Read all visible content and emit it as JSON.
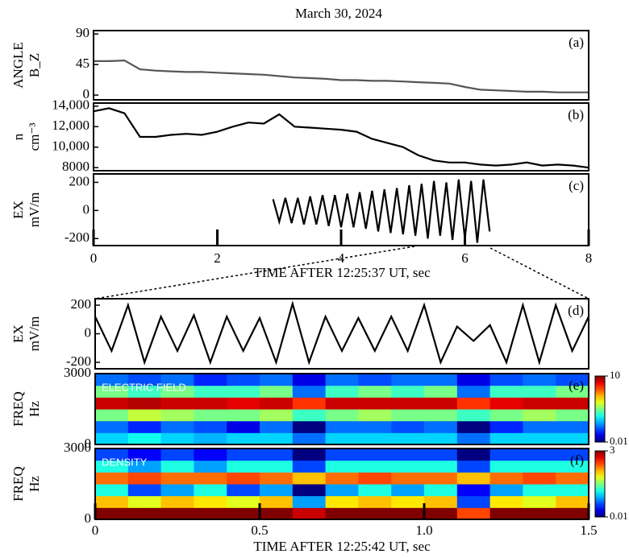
{
  "title": "March 30, 2024",
  "chart_data": [
    {
      "type": "line",
      "label": "(a)",
      "ylabel": [
        "ANGLE",
        "B_Z"
      ],
      "color": "#555555",
      "x": [
        0,
        0.25,
        0.5,
        0.75,
        1,
        1.25,
        1.5,
        1.75,
        2,
        2.25,
        2.5,
        2.75,
        3,
        3.25,
        3.5,
        3.75,
        4,
        4.25,
        4.5,
        4.75,
        5,
        5.25,
        5.5,
        5.75,
        6,
        6.25,
        6.5,
        6.75,
        7,
        7.25,
        7.5,
        7.75,
        8
      ],
      "values": [
        50,
        50,
        51,
        38,
        36,
        35,
        34,
        34,
        33,
        32,
        31,
        30,
        28,
        26,
        25,
        24,
        22,
        22,
        21,
        21,
        20,
        19,
        18,
        17,
        12,
        8,
        7,
        6,
        5,
        5,
        4,
        4,
        4
      ],
      "xlim": [
        0,
        8
      ],
      "ylim": [
        -7,
        95
      ],
      "yticks": [
        0,
        45,
        90
      ]
    },
    {
      "type": "line",
      "label": "(b)",
      "ylabel": [
        "n",
        "cm⁻³"
      ],
      "color": "#000000",
      "x": [
        0,
        0.25,
        0.5,
        0.75,
        1,
        1.25,
        1.5,
        1.75,
        2,
        2.25,
        2.5,
        2.75,
        3,
        3.25,
        3.5,
        3.75,
        4,
        4.25,
        4.5,
        4.75,
        5,
        5.25,
        5.5,
        5.75,
        6,
        6.25,
        6.5,
        6.75,
        7,
        7.25,
        7.5,
        7.75,
        8
      ],
      "values": [
        13500,
        13800,
        13300,
        11000,
        11000,
        11200,
        11300,
        11200,
        11500,
        12000,
        12400,
        12300,
        13200,
        12000,
        11900,
        11800,
        11700,
        11500,
        10800,
        10400,
        10000,
        9200,
        8700,
        8500,
        8500,
        8300,
        8200,
        8300,
        8500,
        8200,
        8300,
        8200,
        8000
      ],
      "xlim": [
        0,
        8
      ],
      "ylim": [
        7700,
        14300
      ],
      "yticks": [
        8000,
        {
          "value": 10000,
          "label": "10,000"
        },
        {
          "value": 12000,
          "label": "12,000"
        },
        {
          "value": 14000,
          "label": "14,000"
        }
      ]
    },
    {
      "type": "line",
      "label": "(c)",
      "ylabel": [
        "EX",
        "mV/m"
      ],
      "color": "#000000",
      "x": [
        2.9,
        3.0,
        3.1,
        3.2,
        3.3,
        3.4,
        3.5,
        3.6,
        3.7,
        3.8,
        3.9,
        4.0,
        4.1,
        4.2,
        4.3,
        4.4,
        4.5,
        4.6,
        4.7,
        4.8,
        4.9,
        5.0,
        5.1,
        5.2,
        5.3,
        5.4,
        5.5,
        5.6,
        5.7,
        5.8,
        5.9,
        6.0,
        6.1,
        6.2,
        6.3,
        6.4
      ],
      "values": [
        80,
        -80,
        90,
        -90,
        90,
        -100,
        100,
        -100,
        110,
        -110,
        110,
        -120,
        120,
        -120,
        130,
        -130,
        140,
        -150,
        150,
        -160,
        160,
        -170,
        180,
        -180,
        190,
        -200,
        210,
        -180,
        200,
        -210,
        220,
        -200,
        210,
        -230,
        220,
        -150
      ],
      "xlim": [
        0,
        8
      ],
      "ylim": [
        -250,
        260
      ],
      "yticks": [
        -200,
        0,
        200
      ],
      "xticks": [
        0,
        2,
        4,
        6,
        8
      ],
      "xlabel": "TIME AFTER 12:25:37 UT, sec"
    },
    {
      "type": "line",
      "label": "(d)",
      "ylabel": [
        "EX",
        "mV/m"
      ],
      "color": "#000000",
      "x": [
        0,
        0.05,
        0.1,
        0.15,
        0.2,
        0.25,
        0.3,
        0.35,
        0.4,
        0.45,
        0.5,
        0.55,
        0.6,
        0.65,
        0.7,
        0.75,
        0.8,
        0.85,
        0.9,
        0.95,
        1.0,
        1.05,
        1.1,
        1.15,
        1.2,
        1.25,
        1.3,
        1.35,
        1.4,
        1.45,
        1.5
      ],
      "values": [
        120,
        -120,
        200,
        -200,
        120,
        -120,
        130,
        -200,
        120,
        -120,
        110,
        -200,
        210,
        -200,
        120,
        -120,
        110,
        -120,
        120,
        -120,
        200,
        -200,
        50,
        -50,
        60,
        -200,
        200,
        -200,
        200,
        -120,
        120
      ],
      "xlim": [
        0,
        1.5
      ],
      "ylim": [
        -245,
        245
      ],
      "yticks": [
        -200,
        0,
        200
      ]
    },
    {
      "type": "heatmap",
      "label": "(e)",
      "inset": "ELECTRIC FIELD",
      "ylabel": [
        "FREQ",
        "Hz"
      ],
      "x": [
        0.05,
        0.15,
        0.25,
        0.35,
        0.45,
        0.55,
        0.65,
        0.75,
        0.85,
        0.95,
        1.05,
        1.15,
        1.25,
        1.35,
        1.45
      ],
      "y": [
        250,
        750,
        1250,
        1750,
        2250,
        2750
      ],
      "z": [
        [
          0.1,
          0.15,
          0.1,
          0.08,
          0.1,
          0.1,
          0.05,
          0.1,
          0.1,
          0.1,
          0.1,
          0.05,
          0.1,
          0.1,
          0.1
        ],
        [
          0.05,
          0.03,
          0.05,
          0.04,
          0.02,
          0.05,
          0.01,
          0.05,
          0.05,
          0.04,
          0.05,
          0.01,
          0.03,
          0.05,
          0.05
        ],
        [
          0.3,
          0.5,
          0.4,
          0.3,
          0.3,
          0.4,
          0.2,
          0.3,
          0.4,
          0.3,
          0.3,
          0.2,
          0.3,
          0.4,
          0.3
        ],
        [
          6,
          7,
          6,
          6,
          5,
          6,
          3,
          6,
          6,
          6,
          6,
          3,
          5,
          6,
          6
        ],
        [
          0.3,
          0.2,
          0.3,
          0.2,
          0.2,
          0.3,
          0.05,
          0.2,
          0.3,
          0.2,
          0.3,
          0.05,
          0.2,
          0.2,
          0.3
        ],
        [
          0.05,
          0.04,
          0.05,
          0.03,
          0.04,
          0.05,
          0.02,
          0.05,
          0.04,
          0.05,
          0.05,
          0.02,
          0.04,
          0.05,
          0.04
        ]
      ],
      "colormap": "jet",
      "log_color": true,
      "clim": [
        0.01,
        10
      ],
      "cticks": [
        0.01,
        10
      ],
      "xlim": [
        0,
        1.5
      ],
      "ylim": [
        0,
        3000
      ],
      "yticks": [
        0,
        3000
      ]
    },
    {
      "type": "heatmap",
      "label": "(f)",
      "inset": "DENSITY",
      "ylabel": [
        "FREQ",
        "Hz"
      ],
      "x": [
        0.05,
        0.15,
        0.25,
        0.35,
        0.45,
        0.55,
        0.65,
        0.75,
        0.85,
        0.95,
        1.05,
        1.15,
        1.25,
        1.35,
        1.45
      ],
      "y": [
        250,
        750,
        1250,
        1750,
        2250,
        2750
      ],
      "z": [
        [
          3,
          3,
          3,
          3,
          3,
          3,
          2,
          3,
          3,
          3,
          3,
          1,
          3,
          3,
          3
        ],
        [
          0.5,
          0.3,
          0.5,
          0.4,
          0.3,
          0.5,
          0.05,
          0.4,
          0.5,
          0.4,
          0.5,
          0.03,
          0.4,
          0.3,
          0.5
        ],
        [
          0.1,
          0.03,
          0.05,
          0.1,
          0.03,
          0.05,
          0.01,
          0.05,
          0.1,
          0.05,
          0.1,
          0.02,
          0.05,
          0.1,
          0.1
        ],
        [
          0.8,
          1,
          0.8,
          0.8,
          1,
          0.8,
          0.5,
          0.8,
          1,
          0.8,
          0.8,
          0.5,
          0.8,
          1,
          0.8
        ],
        [
          0.1,
          0.05,
          0.1,
          0.05,
          0.1,
          0.1,
          0.03,
          0.1,
          0.1,
          0.1,
          0.1,
          0.03,
          0.1,
          0.1,
          0.1
        ],
        [
          0.03,
          0.02,
          0.03,
          0.02,
          0.03,
          0.03,
          0.01,
          0.03,
          0.03,
          0.03,
          0.03,
          0.01,
          0.03,
          0.03,
          0.03
        ]
      ],
      "colormap": "jet",
      "log_color": true,
      "clim": [
        0.01,
        3
      ],
      "cticks": [
        0.01,
        3
      ],
      "xlim": [
        0,
        1.5
      ],
      "ylim": [
        0,
        3000
      ],
      "yticks": [
        0,
        3000
      ],
      "xticks": [
        0,
        0.5,
        {
          "value": 1,
          "label": "1.0"
        },
        {
          "value": 1.5,
          "label": "1.5"
        }
      ],
      "xlabel": "TIME AFTER 12:25:42 UT, sec"
    }
  ]
}
